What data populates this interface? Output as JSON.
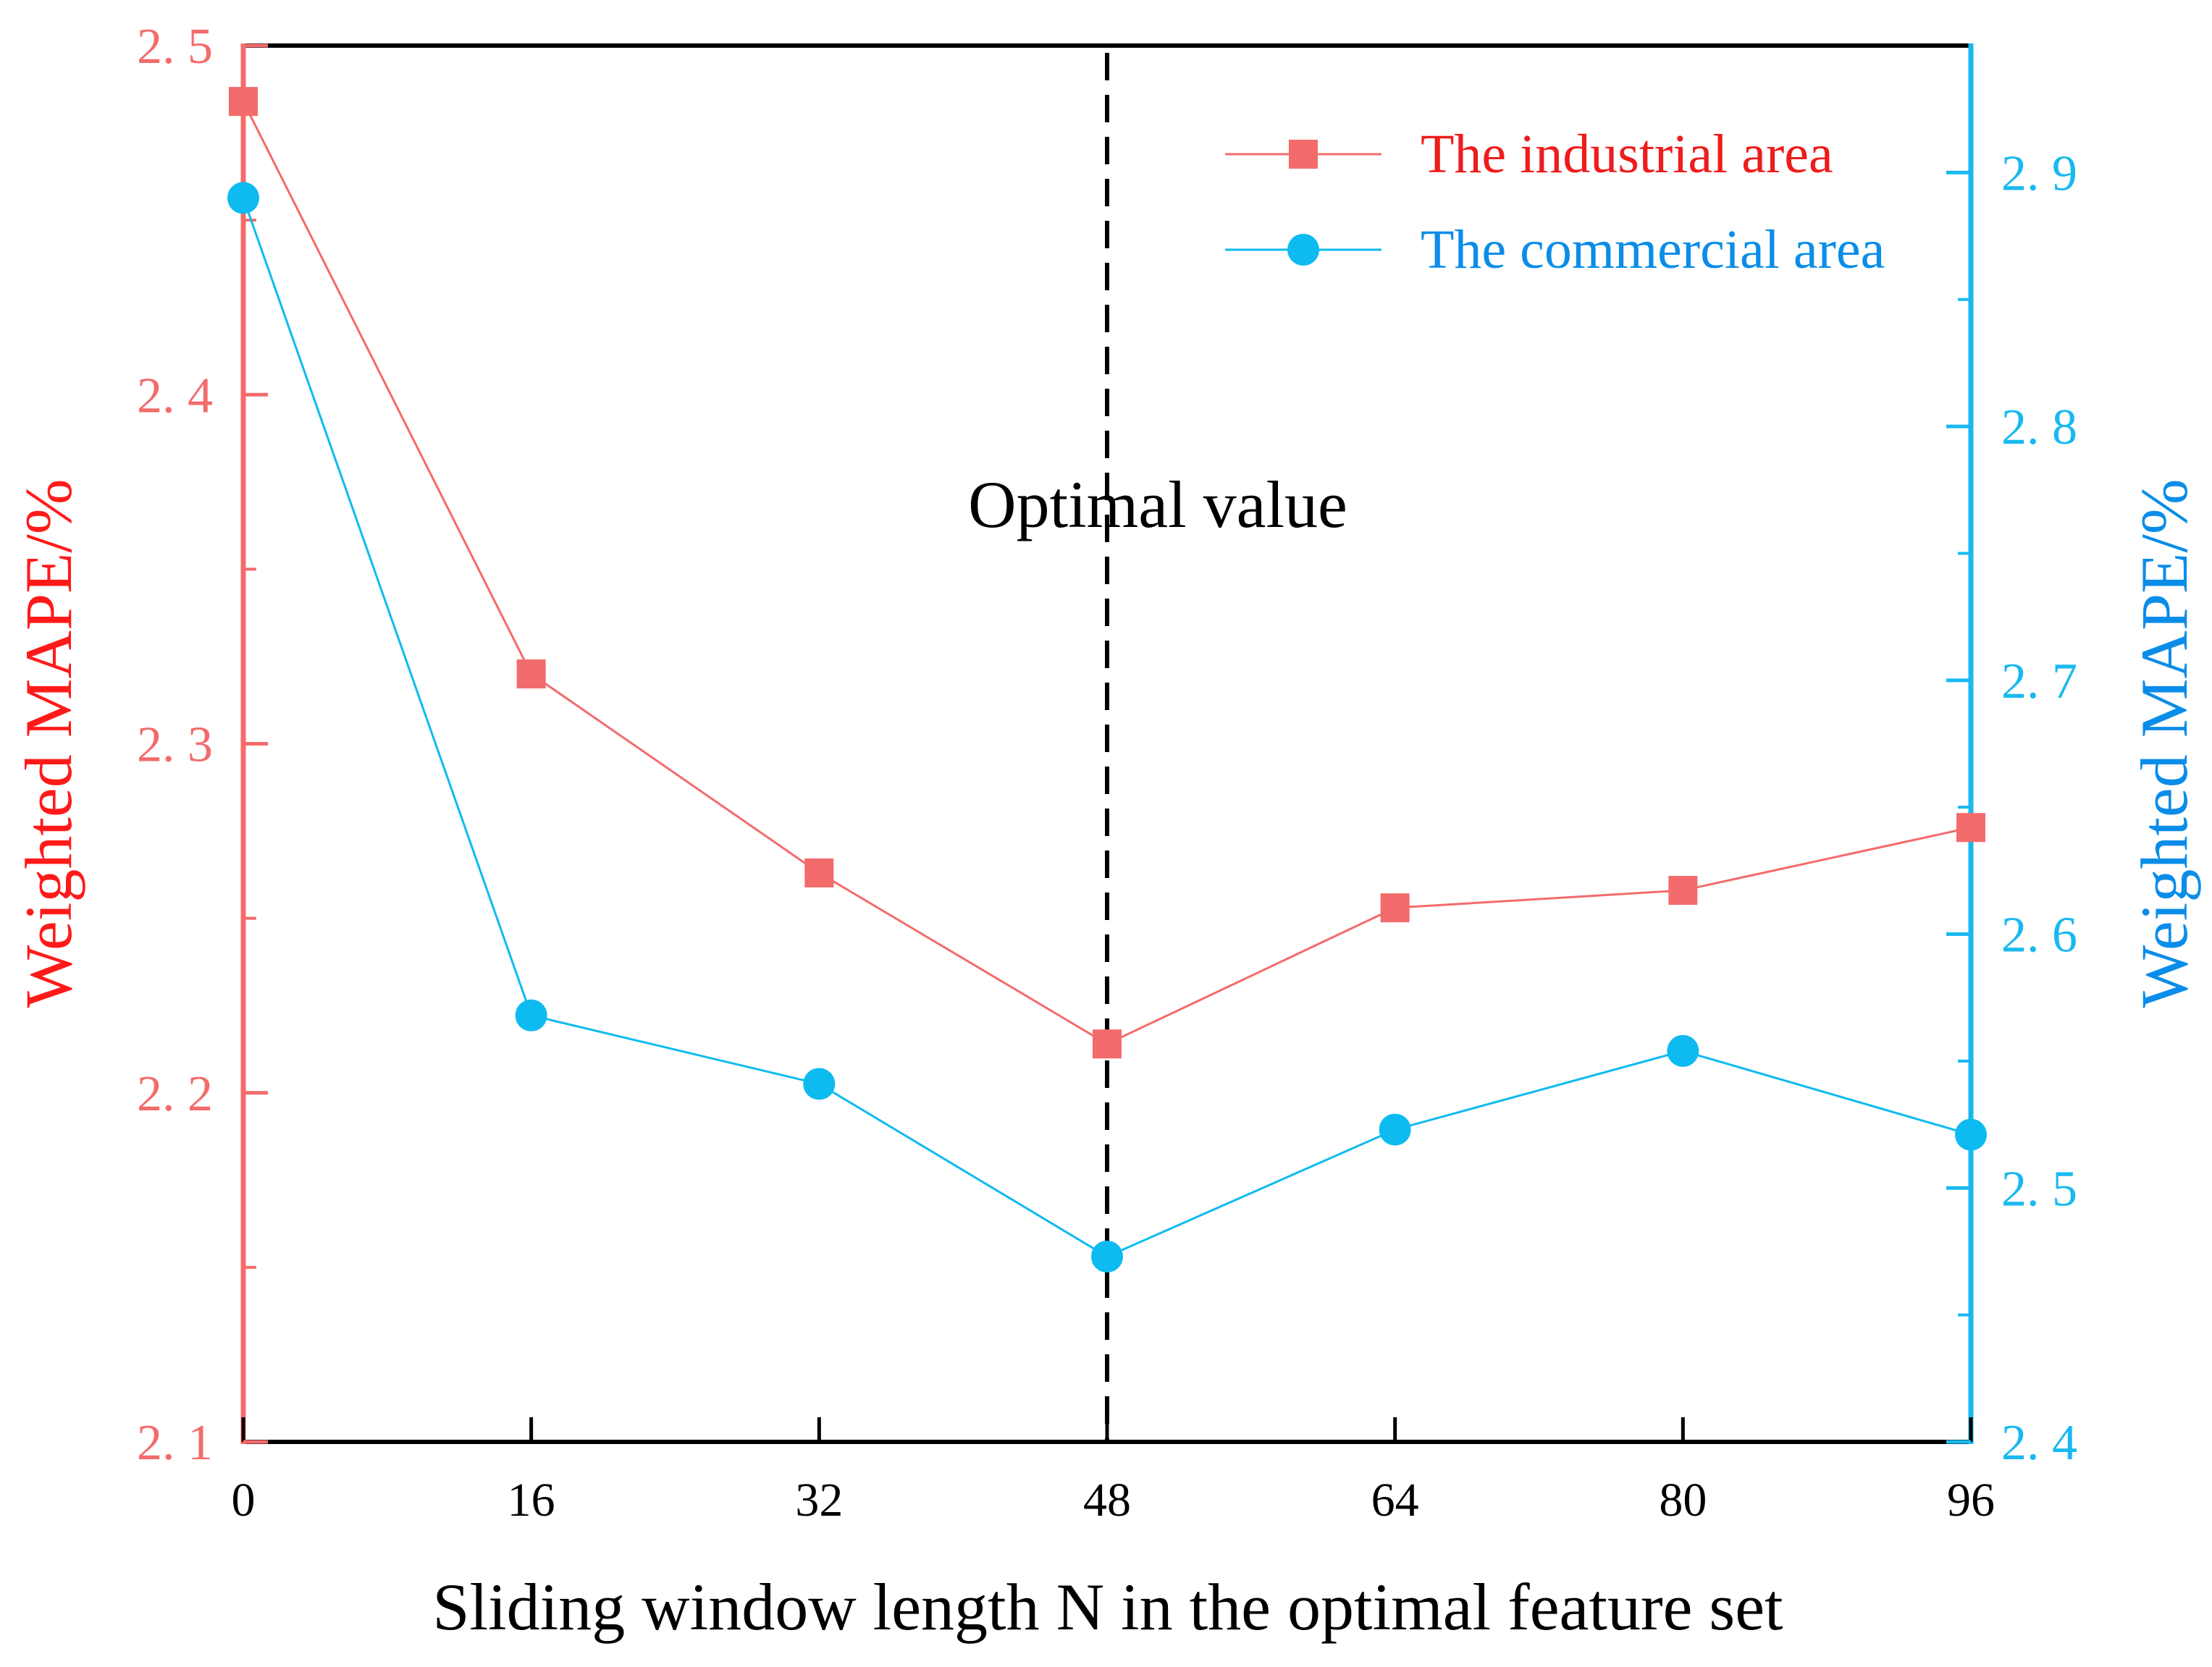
{
  "chart_data": {
    "type": "line",
    "x": [
      0,
      16,
      32,
      48,
      64,
      80,
      96
    ],
    "x_tick_labels": [
      "0",
      "16",
      "32",
      "48",
      "64",
      "80",
      "96"
    ],
    "xlim": [
      0,
      96
    ],
    "xlabel": "Sliding window length N in the optimal feature set",
    "left_axis": {
      "label": "Weighted MAPE/%",
      "ylim": [
        2.1,
        2.5
      ],
      "ticks": [
        2.1,
        2.2,
        2.3,
        2.4,
        2.5
      ],
      "tick_labels": [
        "2. 1",
        "2. 2",
        "2. 3",
        "2. 4",
        "2. 5"
      ],
      "minor_ticks": [
        2.15,
        2.25,
        2.35,
        2.45
      ],
      "color": "#f46b6b",
      "label_color": "#ff1a1a"
    },
    "right_axis": {
      "label": "Weighted MAPE/%",
      "ylim": [
        2.4,
        2.95
      ],
      "ticks": [
        2.4,
        2.5,
        2.6,
        2.7,
        2.8,
        2.9
      ],
      "tick_labels": [
        "2. 4",
        "2. 5",
        "2. 6",
        "2. 7",
        "2. 8",
        "2. 9"
      ],
      "minor_ticks": [
        2.45,
        2.55,
        2.65,
        2.75,
        2.85
      ],
      "color": "#19b9ef",
      "label_color": "#0a8de8"
    },
    "series": [
      {
        "name": "The industrial area",
        "axis": "left",
        "marker": "square",
        "color": "#f46b6b",
        "label_color": "#ee1c1c",
        "values": [
          2.484,
          2.32,
          2.263,
          2.214,
          2.253,
          2.258,
          2.276
        ]
      },
      {
        "name": "The commercial area",
        "axis": "right",
        "marker": "circle",
        "color": "#0dbbf0",
        "label_color": "#0a8de8",
        "values": [
          2.89,
          2.568,
          2.541,
          2.473,
          2.523,
          2.554,
          2.521
        ]
      }
    ],
    "annotations": [
      {
        "text": "Optimal value",
        "x": 48,
        "type": "vertical-dashed-line"
      }
    ],
    "legend_position": "top-right",
    "grid": false
  }
}
